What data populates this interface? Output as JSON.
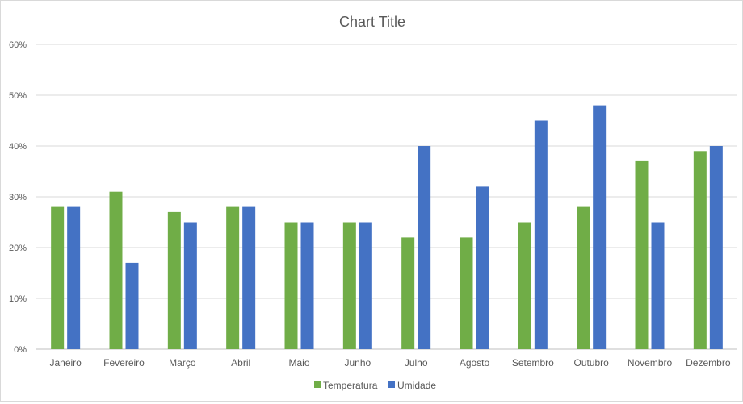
{
  "chart_data": {
    "type": "bar",
    "title": "Chart Title",
    "categories": [
      "Janeiro",
      "Fevereiro",
      "Março",
      "Abril",
      "Maio",
      "Junho",
      "Julho",
      "Agosto",
      "Setembro",
      "Outubro",
      "Novembro",
      "Dezembro"
    ],
    "series": [
      {
        "name": "Temperatura",
        "color": "#70ad47",
        "values": [
          28,
          31,
          27,
          28,
          25,
          25,
          22,
          22,
          25,
          28,
          37,
          39
        ]
      },
      {
        "name": "Umidade",
        "color": "#4472c4",
        "values": [
          28,
          17,
          25,
          28,
          25,
          25,
          40,
          32,
          45,
          48,
          25,
          40
        ]
      }
    ],
    "ylim": [
      0,
      60
    ],
    "yticks": [
      "0%",
      "10%",
      "20%",
      "30%",
      "40%",
      "50%",
      "60%"
    ],
    "grid": true,
    "legend_position": "bottom"
  }
}
